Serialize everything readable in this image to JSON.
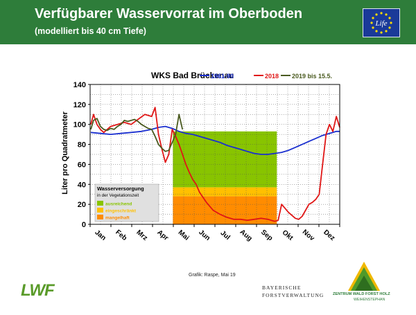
{
  "header": {
    "title": "Verfügbarer Wasservorrat im Oberboden",
    "subtitle": "(modelliert bis 40 cm Tiefe)",
    "bg_color": "#2e7d3a",
    "logo_icon": "eu-life-logo-icon",
    "logo_text": "Life"
  },
  "footer": {
    "credit": "Grafik: Raspe, Mai 19",
    "lwf_logo": "LWF",
    "bayern_line1": "BAYERISCHE",
    "bayern_line2": "FORSTVERWALTUNG",
    "zentrum_line1": "ZENTRUM WALD FORST HOLZ",
    "zentrum_line2": "WEIHENSTEPHAN"
  },
  "chart_data": {
    "type": "line",
    "title": "WKS Bad Brückenau",
    "ylabel": "Liter pro Quadratmeter",
    "ylim": [
      0,
      140
    ],
    "yticks": [
      0,
      20,
      40,
      60,
      80,
      100,
      120,
      140
    ],
    "xticks": [
      "Jan",
      "Feb",
      "Mrz",
      "Apr",
      "Mai",
      "Jun",
      "Jul",
      "Aug",
      "Sep",
      "Okt",
      "Nov",
      "Dez"
    ],
    "x_unit_note": "",
    "grid": true,
    "legend_position": "top",
    "series": [
      {
        "name": "1961-90",
        "color": "#1a2fd0",
        "x": [
          1,
          15,
          30,
          45,
          60,
          75,
          90,
          100,
          110,
          120,
          130,
          140,
          150,
          160,
          170,
          180,
          190,
          200,
          210,
          220,
          230,
          240,
          250,
          260,
          270,
          280,
          290,
          300,
          310,
          320,
          330,
          340,
          350,
          360,
          365
        ],
        "y": [
          92,
          91,
          90,
          91,
          92,
          93,
          95,
          97,
          98,
          96,
          93,
          91,
          90,
          88,
          86,
          84,
          82,
          79,
          77,
          75,
          73,
          71,
          70,
          70,
          71,
          72,
          74,
          77,
          80,
          83,
          86,
          89,
          91,
          93,
          93
        ]
      },
      {
        "name": "2018",
        "color": "#e01515",
        "x": [
          1,
          5,
          10,
          15,
          20,
          30,
          40,
          50,
          60,
          70,
          80,
          90,
          95,
          100,
          105,
          110,
          115,
          120,
          125,
          130,
          135,
          140,
          145,
          150,
          155,
          160,
          170,
          180,
          190,
          200,
          210,
          220,
          230,
          240,
          250,
          260,
          270,
          275,
          280,
          290,
          300,
          305,
          310,
          320,
          325,
          330,
          335,
          340,
          345,
          350,
          355,
          360,
          365
        ],
        "y": [
          100,
          110,
          100,
          95,
          92,
          98,
          100,
          102,
          100,
          105,
          110,
          108,
          117,
          90,
          75,
          62,
          70,
          95,
          88,
          80,
          70,
          60,
          52,
          45,
          40,
          32,
          22,
          14,
          10,
          7,
          5,
          5,
          4,
          5,
          6,
          5,
          3,
          4,
          20,
          12,
          6,
          5,
          8,
          20,
          22,
          25,
          30,
          60,
          90,
          100,
          93,
          108,
          97
        ]
      },
      {
        "name": "2019 bis 15.5.",
        "color": "#4a5a1f",
        "x": [
          1,
          5,
          10,
          15,
          20,
          25,
          30,
          35,
          40,
          45,
          50,
          55,
          60,
          65,
          70,
          75,
          80,
          85,
          90,
          95,
          100,
          105,
          110,
          115,
          120,
          125,
          130,
          135
        ],
        "y": [
          95,
          104,
          106,
          98,
          95,
          94,
          96,
          95,
          98,
          100,
          104,
          103,
          104,
          105,
          103,
          100,
          98,
          96,
          95,
          88,
          80,
          76,
          73,
          74,
          82,
          90,
          110,
          95
        ]
      }
    ],
    "bands": {
      "x_start": 121,
      "x_end": 273,
      "ausreichend": [
        37,
        93
      ],
      "eingeschraenkt": [
        28,
        37
      ],
      "mangelhaft": [
        0,
        28
      ]
    },
    "band_legend": {
      "title": "Wasserversorgung",
      "subtitle": "in der Vegetationszeit",
      "items": [
        {
          "label": "ausreichend",
          "color": "#88c400"
        },
        {
          "label": "eingeschränkt",
          "color": "#ffc000"
        },
        {
          "label": "mangelhaft",
          "color": "#ff8c00"
        }
      ]
    }
  }
}
